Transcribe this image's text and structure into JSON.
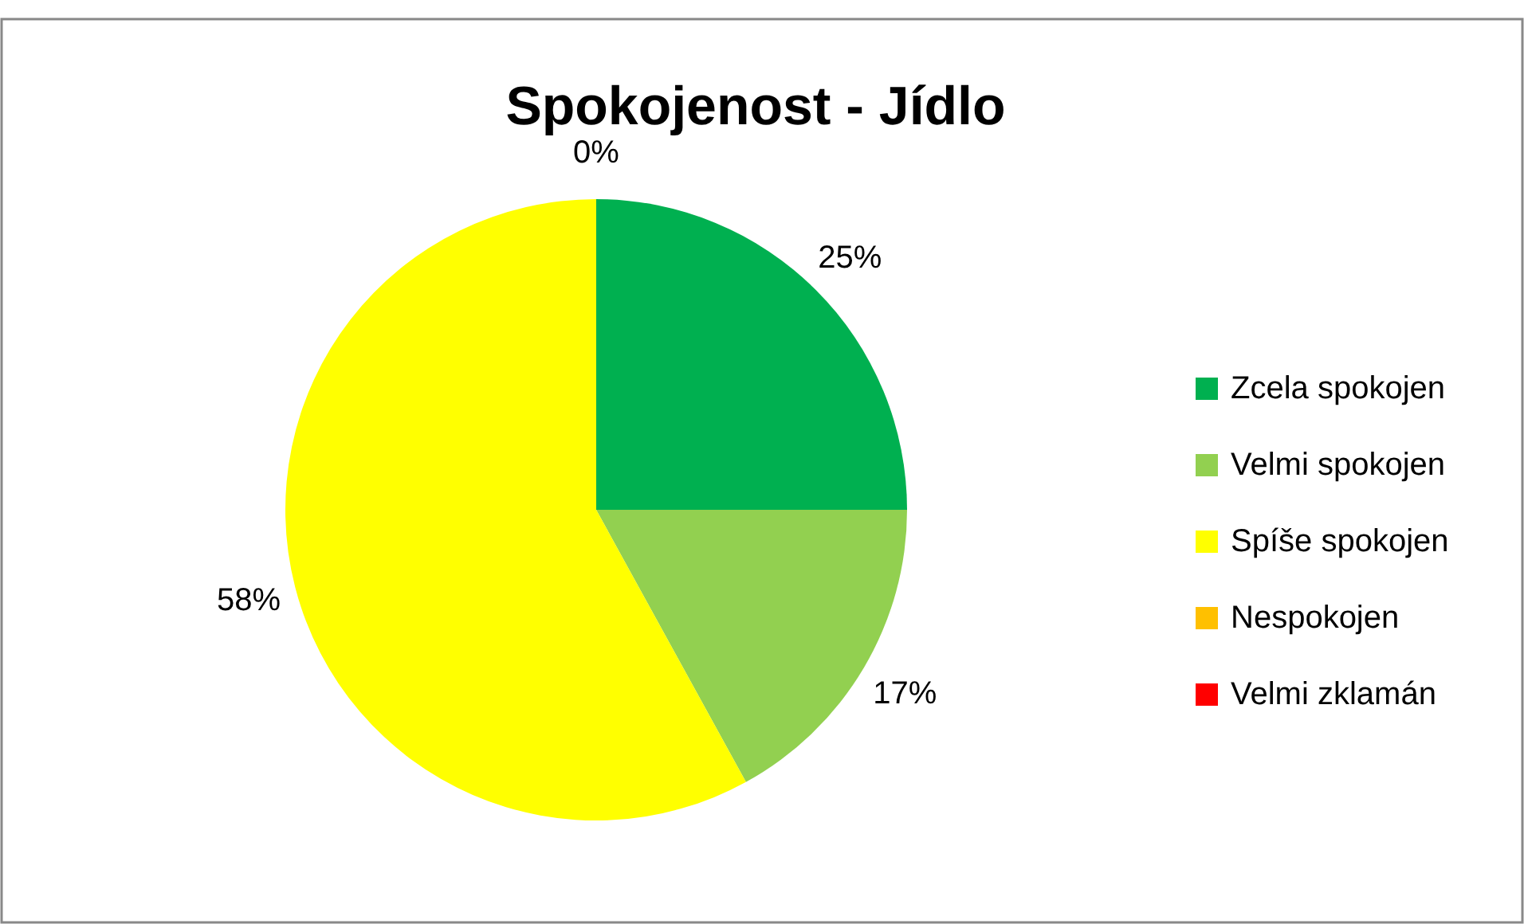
{
  "chart_data": {
    "type": "pie",
    "title": "Spokojenost - Jídlo",
    "categories": [
      "Zcela spokojen",
      "Velmi spokojen",
      "Spíše spokojen",
      "Nespokojen",
      "Velmi zklamán"
    ],
    "values": [
      25,
      17,
      58,
      0,
      0
    ],
    "colors": [
      "#00b050",
      "#92d050",
      "#ffff00",
      "#ffc000",
      "#ff0000"
    ],
    "value_labels": [
      "25%",
      "17%",
      "58%",
      "0%",
      null
    ],
    "legend": "right"
  }
}
